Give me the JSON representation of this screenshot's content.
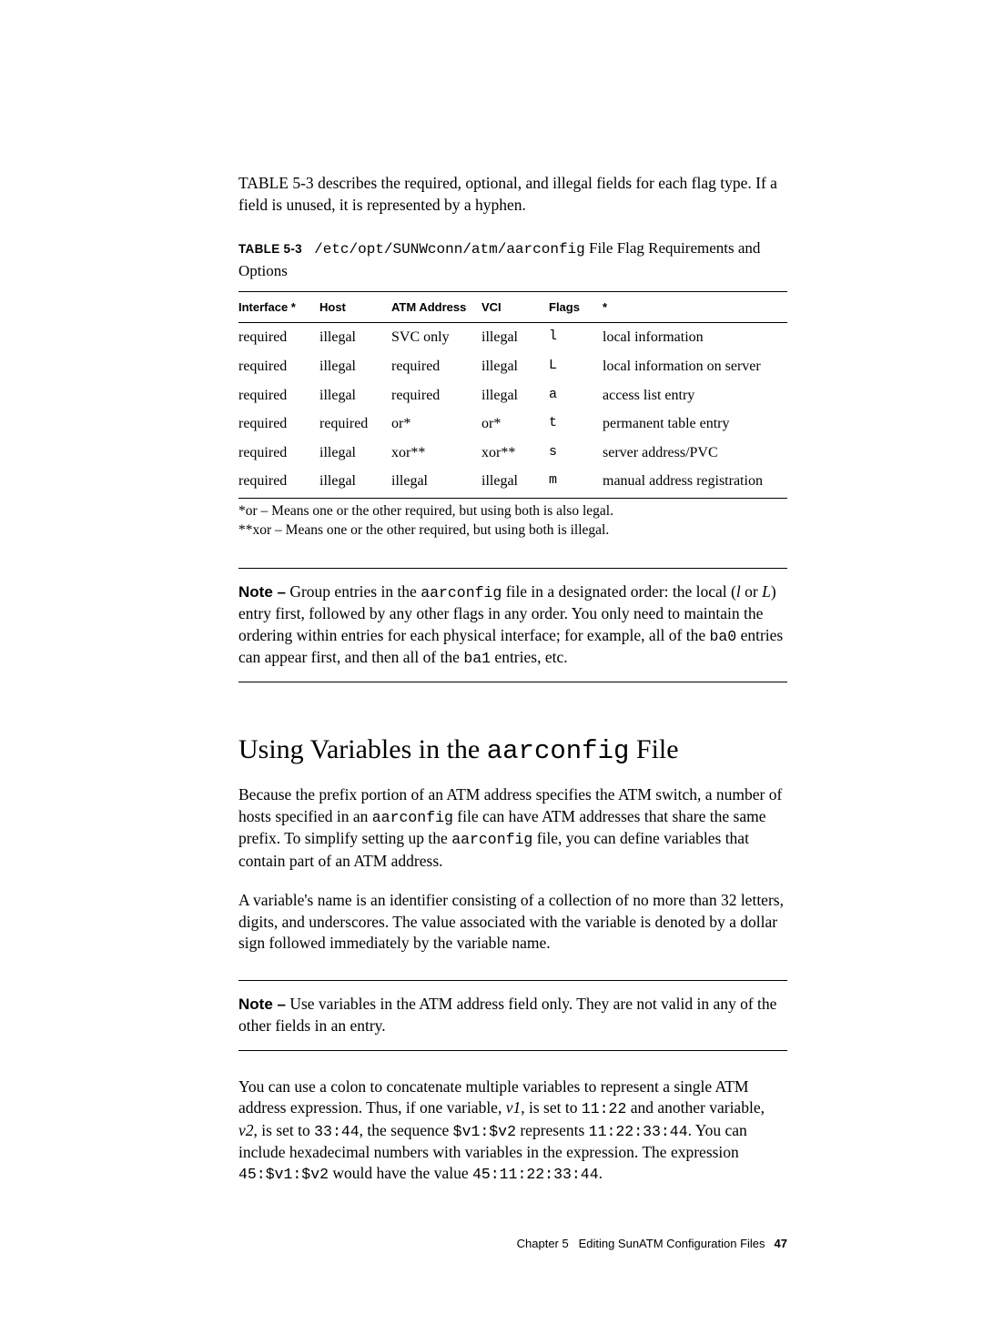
{
  "intro": {
    "ref": "TABLE 5-3",
    "text_after": " describes the required, optional, and illegal fields for each flag type. If a field is unused, it is represented by a hyphen."
  },
  "table_caption": {
    "label": "TABLE 5-3",
    "path": "/etc/opt/SUNWconn/atm/aarconfig",
    "suffix": " File Flag Requirements and Options"
  },
  "table": {
    "headers": [
      "Interface *",
      "Host",
      "ATM Address",
      "VCI",
      "Flags",
      "*"
    ],
    "rows": [
      [
        "required",
        "illegal",
        "SVC only",
        "illegal",
        "l",
        "local information"
      ],
      [
        "required",
        "illegal",
        "required",
        "illegal",
        "L",
        "local information on server"
      ],
      [
        "required",
        "illegal",
        "required",
        "illegal",
        "a",
        "access list entry"
      ],
      [
        "required",
        "required",
        "or*",
        "or*",
        "t",
        "permanent table entry"
      ],
      [
        "required",
        "illegal",
        "xor**",
        "xor**",
        "s",
        "server address/PVC"
      ],
      [
        "required",
        "illegal",
        "illegal",
        "illegal",
        "m",
        "manual address registration"
      ]
    ]
  },
  "footnotes": {
    "fn1": "*or – Means one or the other required, but using both is also legal.",
    "fn2": "**xor – Means one or the other required, but using both is illegal."
  },
  "note1": {
    "label": "Note –",
    "p1a": " Group entries in the ",
    "code1": "aarconfig",
    "p1b": " file in a designated order: the local (",
    "ital1": "l",
    "p1c": " or ",
    "ital2": "L",
    "p1d": ") entry first, followed by any other flags in any order. You only need to maintain the ordering within entries for each physical interface; for example, all of the ",
    "code2": "ba0",
    "p1e": " entries can appear first, and then all of the ",
    "code3": "ba1",
    "p1f": " entries, etc."
  },
  "heading": {
    "pre": "Using Variables in the ",
    "code": "aarconfig",
    "post": " File"
  },
  "para1": {
    "a": "Because the prefix portion of an ATM address specifies the ATM switch, a number of hosts specified in an ",
    "code1": "aarconfig",
    "b": " file can have ATM addresses that share the same prefix. To simplify setting up the ",
    "code2": "aarconfig",
    "c": " file, you can define variables that contain part of an ATM address."
  },
  "para2": "A variable's name is an identifier consisting of a collection of no more than 32 letters, digits, and underscores. The value associated with the variable is denoted by a dollar sign followed immediately by the variable name.",
  "note2": {
    "label": "Note –",
    "text": " Use variables in the ATM address field only. They are not valid in any of the other fields in an entry."
  },
  "para3": {
    "a": "You can use a colon to concatenate multiple variables to represent a single ATM address expression. Thus, if one variable, ",
    "v1": "v1",
    "b": ", is set to ",
    "c1": "11:22",
    "c": " and another variable, ",
    "v2": "v2",
    "d": ", is set to ",
    "c2": "33:44",
    "e": ", the sequence ",
    "c3": "$v1:$v2",
    "f": " represents ",
    "c4": "11:22:33:44",
    "g": ". You can include hexadecimal numbers with variables in the expression. The expression ",
    "c5": "45:$v1:$v2",
    "h": " would have the value ",
    "c6": "45:11:22:33:44",
    "i": "."
  },
  "footer": {
    "chapter": "Chapter 5",
    "title": "Editing SunATM Configuration Files",
    "page": "47"
  }
}
